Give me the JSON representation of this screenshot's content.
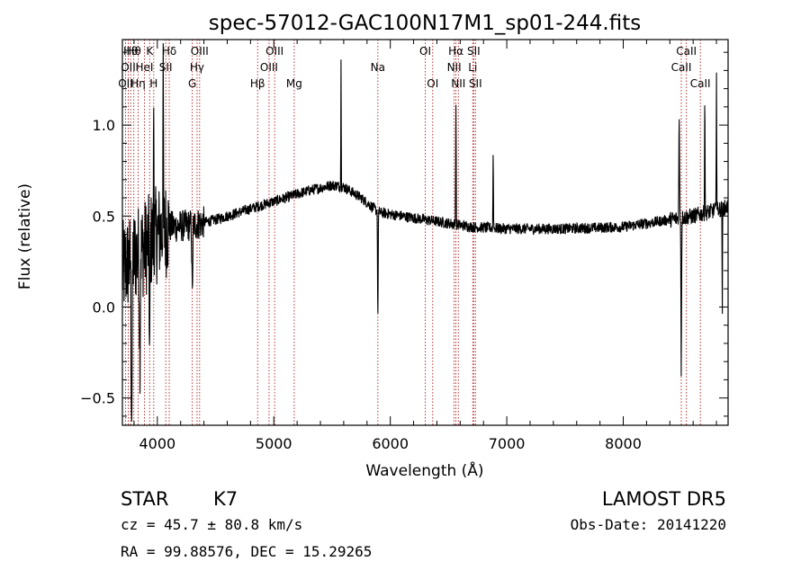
{
  "chart_data": {
    "type": "line",
    "title": "spec-57012-GAC100N17M1_sp01-244.fits",
    "xlabel": "Wavelength (Å)",
    "ylabel": "Flux (relative)",
    "xlim": [
      3700,
      8900
    ],
    "ylim": [
      -0.65,
      1.47
    ],
    "x_ticks": [
      {
        "value": 4000,
        "label": "4000"
      },
      {
        "value": 5000,
        "label": "5000"
      },
      {
        "value": 6000,
        "label": "6000"
      },
      {
        "value": 7000,
        "label": "7000"
      },
      {
        "value": 8000,
        "label": "8000"
      }
    ],
    "y_ticks": [
      {
        "value": -0.5,
        "label": "−0.5"
      },
      {
        "value": 0.0,
        "label": "0.0"
      },
      {
        "value": 0.5,
        "label": "0.5"
      },
      {
        "value": 1.0,
        "label": "1.0"
      }
    ],
    "grid": false,
    "line_color": "#000000",
    "marker_color": "#b22222",
    "lines": [
      {
        "wave": 3727,
        "label": "OII",
        "row": 3
      },
      {
        "wave": 3750,
        "label": "OII",
        "row": 2
      },
      {
        "wave": 3771,
        "label": "Hθ",
        "row": 1
      },
      {
        "wave": 3798,
        "label": "Hθ",
        "row": 1
      },
      {
        "wave": 3835,
        "label": "Hη",
        "row": 3
      },
      {
        "wave": 3889,
        "label": "HeI",
        "row": 2
      },
      {
        "wave": 3934,
        "label": "K",
        "row": 1
      },
      {
        "wave": 3969,
        "label": "H",
        "row": 3
      },
      {
        "wave": 4072,
        "label": "SII",
        "row": 2
      },
      {
        "wave": 4102,
        "label": "Hδ",
        "row": 1
      },
      {
        "wave": 4300,
        "label": "G",
        "row": 3
      },
      {
        "wave": 4341,
        "label": "Hγ",
        "row": 2
      },
      {
        "wave": 4363,
        "label": "OIII",
        "row": 1
      },
      {
        "wave": 4861,
        "label": "Hβ",
        "row": 3
      },
      {
        "wave": 4959,
        "label": "OIII",
        "row": 2
      },
      {
        "wave": 5007,
        "label": "OIII",
        "row": 1
      },
      {
        "wave": 5175,
        "label": "Mg",
        "row": 3
      },
      {
        "wave": 5893,
        "label": "Na",
        "row": 2
      },
      {
        "wave": 6300,
        "label": "OI",
        "row": 1
      },
      {
        "wave": 6364,
        "label": "OI",
        "row": 3
      },
      {
        "wave": 6548,
        "label": "NII",
        "row": 2
      },
      {
        "wave": 6563,
        "label": "Hα",
        "row": 1
      },
      {
        "wave": 6584,
        "label": "NII",
        "row": 3
      },
      {
        "wave": 6708,
        "label": "Li",
        "row": 2
      },
      {
        "wave": 6716,
        "label": "SII",
        "row": 1
      },
      {
        "wave": 6731,
        "label": "SII",
        "row": 3
      },
      {
        "wave": 8498,
        "label": "CaII",
        "row": 2
      },
      {
        "wave": 8542,
        "label": "CaII",
        "row": 1
      },
      {
        "wave": 8662,
        "label": "CaII",
        "row": 3
      }
    ],
    "continuum": [
      [
        3700,
        0.2
      ],
      [
        3800,
        0.28
      ],
      [
        3900,
        0.33
      ],
      [
        4000,
        0.4
      ],
      [
        4100,
        0.44
      ],
      [
        4300,
        0.45
      ],
      [
        4500,
        0.48
      ],
      [
        4700,
        0.52
      ],
      [
        4900,
        0.56
      ],
      [
        5100,
        0.6
      ],
      [
        5300,
        0.64
      ],
      [
        5500,
        0.67
      ],
      [
        5600,
        0.66
      ],
      [
        5750,
        0.6
      ],
      [
        5900,
        0.52
      ],
      [
        6100,
        0.5
      ],
      [
        6300,
        0.48
      ],
      [
        6500,
        0.46
      ],
      [
        6700,
        0.44
      ],
      [
        7000,
        0.43
      ],
      [
        7500,
        0.43
      ],
      [
        8000,
        0.44
      ],
      [
        8400,
        0.48
      ],
      [
        8600,
        0.5
      ],
      [
        8900,
        0.55
      ]
    ],
    "features": [
      {
        "wave": 3780,
        "depth": -0.9,
        "width": 10
      },
      {
        "wave": 3850,
        "depth": -0.6,
        "width": 8
      },
      {
        "wave": 3934,
        "depth": -0.75,
        "width": 6
      },
      {
        "wave": 3969,
        "depth": 0.8,
        "width": 5
      },
      {
        "wave": 4050,
        "depth": 0.9,
        "width": 5
      },
      {
        "wave": 4300,
        "depth": -0.4,
        "width": 8
      },
      {
        "wave": 5577,
        "depth": 0.72,
        "width": 4
      },
      {
        "wave": 5893,
        "depth": -0.65,
        "width": 6
      },
      {
        "wave": 6563,
        "depth": 0.7,
        "width": 5
      },
      {
        "wave": 6883,
        "depth": 0.45,
        "width": 5
      },
      {
        "wave": 8498,
        "depth": -0.9,
        "width": 6
      },
      {
        "wave": 8480,
        "depth": 0.6,
        "width": 6
      },
      {
        "wave": 8700,
        "depth": 0.72,
        "width": 5
      },
      {
        "wave": 8800,
        "depth": 0.8,
        "width": 4
      },
      {
        "wave": 8850,
        "depth": -0.6,
        "width": 4
      }
    ]
  },
  "info": {
    "object_class": "STAR",
    "subclass": "K7",
    "survey": "LAMOST DR5",
    "redshift": "cz = 45.7 ± 80.8 km/s",
    "obs_date": "Obs-Date: 20141220",
    "coords": "RA =  99.88576, DEC =  15.29265"
  }
}
